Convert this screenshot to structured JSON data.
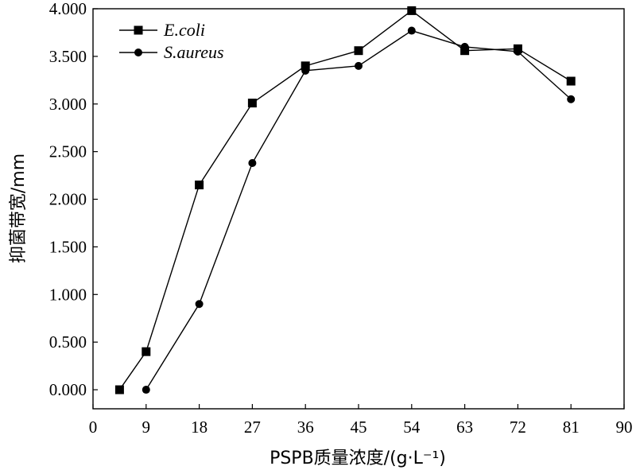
{
  "chart_data": {
    "type": "line",
    "xlabel": "PSPB质量浓度/(g·L⁻¹)",
    "ylabel": "抑菌带宽/mm",
    "xlim": [
      0,
      90
    ],
    "ylim": [
      -0.2,
      4.0
    ],
    "x_ticks": [
      0,
      9,
      18,
      27,
      36,
      45,
      54,
      63,
      72,
      81,
      90
    ],
    "y_ticks": [
      0,
      0.5,
      1.0,
      1.5,
      2.0,
      2.5,
      3.0,
      3.5,
      4.0
    ],
    "x_tick_labels": [
      "0",
      "9",
      "18",
      "27",
      "36",
      "45",
      "54",
      "63",
      "72",
      "81",
      "90"
    ],
    "y_tick_labels": [
      "0.000",
      "0.500",
      "1.000",
      "1.500",
      "2.000",
      "2.500",
      "3.000",
      "3.500",
      "4.000"
    ],
    "grid": false,
    "legend_position": "top-left",
    "series": [
      {
        "name": "E.coli",
        "marker": "square",
        "color": "#000000",
        "x": [
          4.5,
          9,
          18,
          27,
          36,
          45,
          54,
          63,
          72,
          81
        ],
        "y": [
          0.0,
          0.4,
          2.15,
          3.01,
          3.4,
          3.56,
          3.98,
          3.56,
          3.58,
          3.24
        ]
      },
      {
        "name": "S.aureus",
        "marker": "circle",
        "color": "#000000",
        "x": [
          9,
          18,
          27,
          36,
          45,
          54,
          63,
          72,
          81
        ],
        "y": [
          0.0,
          0.9,
          2.38,
          3.35,
          3.4,
          3.77,
          3.6,
          3.55,
          3.05
        ]
      }
    ]
  }
}
